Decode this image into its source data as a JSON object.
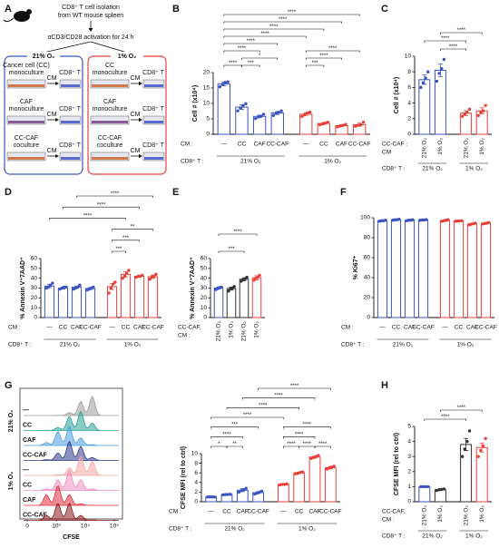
{
  "diagram": {
    "panel": "A",
    "isolation": [
      "CD8⁺ T cell isolation",
      "from WT mouse spleen"
    ],
    "activation": "αCD3/CD28 activation for 24 h",
    "conditions": [
      {
        "label": "21% O₂",
        "rows": [
          {
            "source": [
              "Cancer cell (CC)",
              "monoculture"
            ],
            "arrow": "CM",
            "target": "CD8⁺ T"
          },
          {
            "source": [
              "CAF",
              "monoculture"
            ],
            "arrow": "CM",
            "target": "CD8⁺ T"
          },
          {
            "source": [
              "CC-CAF",
              "coculture"
            ],
            "arrow": "CM",
            "target": "CD8⁺ T"
          }
        ]
      },
      {
        "label": "1% O₂",
        "rows": [
          {
            "source": [
              "CC",
              "monoculture"
            ],
            "arrow": "CM",
            "target": "CD8⁺ T"
          },
          {
            "source": [
              "CAF",
              "monoculture"
            ],
            "arrow": "CM",
            "target": "CD8⁺ T"
          },
          {
            "source": [
              "CC-CAF",
              "coculture"
            ],
            "arrow": "CM",
            "target": "CD8⁺ T"
          }
        ]
      }
    ]
  },
  "histogram": {
    "panel": "G",
    "labels": [
      "—",
      "CC",
      "CAF",
      "CC-CAF",
      "—",
      "CC",
      "CAF",
      "CC-CAF"
    ],
    "colors": [
      "#9a9a9a",
      "#2aa198",
      "#4a9fe0",
      "#303a8a",
      "#f4a6a0",
      "#f08cc0",
      "#e0303a",
      "#8a1a1a"
    ],
    "groups": [
      "21% O₂",
      "1% O₂"
    ],
    "xticks": [
      "0",
      "10³",
      "10⁴",
      "10⁵"
    ],
    "xlabel": "CFSE"
  },
  "chart_data": [
    {
      "type": "bar",
      "panel": "B",
      "ylabel": "Cell # (x10⁴)",
      "ylim": [
        0,
        20
      ],
      "yticks": [
        0,
        5,
        10,
        15,
        20
      ],
      "cm_label": [
        "CM :"
      ],
      "group_title": "CD8⁺ T :",
      "groups": [
        {
          "label": "21% O₂",
          "categories": [
            "—",
            "CC",
            "CAF",
            "CC-CAF"
          ],
          "colors": [
            "#3b54c4",
            "#3b54c4",
            "#3b54c4",
            "#3b54c4"
          ],
          "values": [
            16.3,
            8.8,
            5.8,
            6.9
          ],
          "errors": [
            0.6,
            0.7,
            0.4,
            0.5
          ],
          "points": [
            [
              15.4,
              16.2,
              16.8,
              17.0
            ],
            [
              7.6,
              8.5,
              9.3,
              9.9
            ],
            [
              5.1,
              5.6,
              5.9,
              6.5
            ],
            [
              6.1,
              6.8,
              7.1,
              7.6
            ]
          ]
        },
        {
          "label": "1% O₂",
          "categories": [
            "—",
            "CC",
            "CAF",
            "CC-CAF"
          ],
          "colors": [
            "#e8413a",
            "#e8413a",
            "#e8413a",
            "#e8413a"
          ],
          "values": [
            6.5,
            3.5,
            2.8,
            3.1
          ],
          "errors": [
            0.4,
            0.3,
            0.3,
            0.5
          ],
          "points": [
            [
              5.8,
              6.3,
              6.9,
              7.2
            ],
            [
              3.1,
              3.3,
              3.6,
              3.9
            ],
            [
              2.4,
              2.7,
              2.9,
              3.2
            ],
            [
              2.6,
              2.9,
              3.1,
              3.9
            ]
          ]
        }
      ],
      "brackets": [
        {
          "bars": [
            0,
            1
          ],
          "label": "****"
        },
        {
          "bars": [
            1,
            2
          ],
          "label": "***"
        },
        {
          "bars": [
            4,
            5
          ],
          "label": "***"
        },
        {
          "bars": [
            1,
            3
          ],
          "label": "*"
        },
        {
          "bars": [
            4,
            6
          ],
          "label": "****"
        },
        {
          "bars": [
            0,
            2
          ],
          "label": "****"
        },
        {
          "bars": [
            4,
            7
          ],
          "label": "****"
        },
        {
          "bars": [
            0,
            3
          ],
          "label": "****"
        },
        {
          "bars": [
            0,
            4
          ],
          "label": "****"
        },
        {
          "bars": [
            0,
            5
          ],
          "label": "****"
        },
        {
          "bars": [
            0,
            6
          ],
          "label": "****"
        },
        {
          "bars": [
            0,
            7
          ],
          "label": "****"
        }
      ]
    },
    {
      "type": "bar",
      "panel": "C",
      "ylabel": "Cell # (x10⁴)",
      "ylim": [
        0,
        10
      ],
      "yticks": [
        0,
        2,
        4,
        6,
        8,
        10
      ],
      "cm_label": [
        "CC-CAF :",
        "CM"
      ],
      "group_title": "CD8⁺ T :",
      "rotate_categories": true,
      "groups": [
        {
          "label": "21% O₂",
          "categories": [
            "21% O₂",
            "1% O₂"
          ],
          "colors": [
            "#3b54c4",
            "#3b54c4"
          ],
          "values": [
            7.0,
            8.2
          ],
          "errors": [
            0.6,
            0.8
          ],
          "points": [
            [
              6.0,
              6.6,
              7.2,
              8.0
            ],
            [
              6.8,
              7.8,
              8.4,
              9.6
            ]
          ]
        },
        {
          "label": "1% O₂",
          "categories": [
            "21% O₂",
            "1% O₂"
          ],
          "colors": [
            "#e8413a",
            "#e8413a"
          ],
          "values": [
            2.7,
            3.0
          ],
          "errors": [
            0.3,
            0.4
          ],
          "points": [
            [
              2.3,
              2.6,
              2.8,
              3.2
            ],
            [
              2.4,
              2.8,
              3.0,
              3.7
            ]
          ]
        }
      ],
      "brackets": [
        {
          "bars": [
            1,
            2
          ],
          "label": "****"
        },
        {
          "bars": [
            0,
            2
          ],
          "label": "****"
        },
        {
          "bars": [
            1,
            3
          ],
          "label": "****"
        }
      ]
    },
    {
      "type": "bar",
      "panel": "D",
      "ylabel": "% Annexin V⁺7AAD⁺",
      "ylim": [
        0,
        60
      ],
      "yticks": [
        0,
        10,
        20,
        30,
        40,
        50,
        60
      ],
      "cm_label": [
        "CM :"
      ],
      "group_title": "CD8⁺ T :",
      "groups": [
        {
          "label": "21% O₂",
          "categories": [
            "—",
            "CC",
            "CAF",
            "CC-CAF"
          ],
          "colors": [
            "#3b54c4",
            "#3b54c4",
            "#3b54c4",
            "#3b54c4"
          ],
          "values": [
            32,
            30,
            31,
            29.5
          ],
          "errors": [
            1.5,
            1,
            1.2,
            1
          ],
          "points": [
            [
              30,
              31,
              33,
              35
            ],
            [
              29,
              30,
              31,
              31
            ],
            [
              29,
              30,
              31,
              33
            ],
            [
              28,
              29,
              30,
              31
            ]
          ]
        },
        {
          "label": "1% O₂",
          "categories": [
            "—",
            "CC",
            "CAF",
            "CC-CAF"
          ],
          "colors": [
            "#e8413a",
            "#e8413a",
            "#e8413a",
            "#e8413a"
          ],
          "values": [
            31.5,
            44,
            42,
            41.5
          ],
          "errors": [
            3,
            2.5,
            0.8,
            1.5
          ],
          "points": [
            [
              25,
              30,
              34,
              36
            ],
            [
              40,
              42,
              45,
              48
            ],
            [
              41,
              42,
              42,
              43
            ],
            [
              39,
              41,
              42,
              44
            ]
          ]
        }
      ],
      "brackets": [
        {
          "bars": [
            4,
            5
          ],
          "label": "***"
        },
        {
          "bars": [
            4,
            6
          ],
          "label": "***"
        },
        {
          "bars": [
            4,
            7
          ],
          "label": "**"
        },
        {
          "bars": [
            0,
            5
          ],
          "label": "****"
        },
        {
          "bars": [
            1,
            6
          ],
          "label": "****"
        },
        {
          "bars": [
            2,
            7
          ],
          "label": "****"
        }
      ]
    },
    {
      "type": "bar",
      "panel": "E",
      "ylabel": "% Annexin V⁺7AAD⁺",
      "ylim": [
        0,
        60
      ],
      "yticks": [
        0,
        10,
        20,
        30,
        40,
        50,
        60
      ],
      "cm_label": [
        "CC-CAF,",
        "CM :"
      ],
      "rotate_categories": true,
      "groups": [
        {
          "categories": [
            "21% O₂",
            "1% O₂",
            "21% O₂",
            "1% O₂"
          ],
          "colors": [
            "#3b54c4",
            "#333333",
            "#333333",
            "#e8413a"
          ],
          "values": [
            30,
            29.5,
            39,
            40.5
          ],
          "errors": [
            1,
            1.5,
            1.5,
            2
          ],
          "points": [
            [
              28.5,
              29.5,
              30.5,
              31
            ],
            [
              27,
              29,
              30,
              31.5
            ],
            [
              37,
              38.5,
              39.5,
              41
            ],
            [
              38,
              40,
              41,
              43
            ]
          ]
        }
      ],
      "brackets": [
        {
          "bars": [
            0,
            2
          ],
          "label": "***"
        },
        {
          "bars": [
            0,
            3
          ],
          "label": "****"
        }
      ]
    },
    {
      "type": "bar",
      "panel": "F",
      "ylabel": "% Ki67⁺",
      "ylim": [
        0,
        100
      ],
      "yticks": [
        0,
        20,
        40,
        60,
        80,
        100
      ],
      "cm_label": [
        "CM :"
      ],
      "group_title": "CD8⁺ T :",
      "groups": [
        {
          "label": "21% O₂",
          "categories": [
            "—",
            "CC",
            "CAF",
            "CC-CAF"
          ],
          "colors": [
            "#3b54c4",
            "#3b54c4",
            "#3b54c4",
            "#3b54c4"
          ],
          "values": [
            97,
            98,
            97.5,
            97.8
          ],
          "errors": [
            0.3,
            0.3,
            0.4,
            0.3
          ],
          "points": [
            [
              96.5,
              97,
              97,
              97.5
            ],
            [
              97.5,
              98,
              98,
              98.5
            ],
            [
              97,
              97.5,
              97.5,
              98
            ],
            [
              97.5,
              97.8,
              97.8,
              98.1
            ]
          ]
        },
        {
          "label": "1% O₂",
          "categories": [
            "—",
            "CC",
            "CAF",
            "CC-CAF"
          ],
          "colors": [
            "#e8413a",
            "#e8413a",
            "#e8413a",
            "#e8413a"
          ],
          "values": [
            97.2,
            96.8,
            93.8,
            94.5
          ],
          "errors": [
            0.5,
            0.3,
            0.6,
            0.5
          ],
          "points": [
            [
              96.5,
              97,
              97.5,
              98
            ],
            [
              96.5,
              96.8,
              96.8,
              97
            ],
            [
              93,
              93.5,
              94,
              94.6
            ],
            [
              93.8,
              94.3,
              94.6,
              95.2
            ]
          ]
        }
      ],
      "brackets": []
    },
    {
      "type": "bar",
      "ylabel": "CFSE MFI (rel to ctrl)",
      "ylim": [
        0,
        10
      ],
      "yticks": [
        0,
        2,
        4,
        6,
        8,
        10
      ],
      "cm_label": [
        "CM :"
      ],
      "group_title": "CD8⁺ T :",
      "groups": [
        {
          "label": "21% O₂",
          "categories": [
            "—",
            "CC",
            "CAF",
            "CC-CAF"
          ],
          "colors": [
            "#3b54c4",
            "#3b54c4",
            "#3b54c4",
            "#3b54c4"
          ],
          "values": [
            1.0,
            1.5,
            2.4,
            1.9
          ],
          "errors": [
            0.02,
            0.05,
            0.3,
            0.2
          ],
          "points": [
            [
              1,
              1,
              1,
              1
            ],
            [
              1.45,
              1.5,
              1.5,
              1.55
            ],
            [
              2.0,
              2.3,
              2.5,
              2.8
            ],
            [
              1.6,
              1.8,
              2.0,
              2.2
            ]
          ]
        },
        {
          "label": "1% O₂",
          "categories": [
            "—",
            "CC",
            "CAF",
            "CC-CAF"
          ],
          "colors": [
            "#e8413a",
            "#e8413a",
            "#e8413a",
            "#e8413a"
          ],
          "values": [
            3.6,
            6.0,
            9.3,
            7.1
          ],
          "errors": [
            0.1,
            0.15,
            0.2,
            0.25
          ],
          "points": [
            [
              3.5,
              3.6,
              3.6,
              3.7
            ],
            [
              5.8,
              5.9,
              6.1,
              6.2
            ],
            [
              9.0,
              9.2,
              9.4,
              9.6
            ],
            [
              6.8,
              7.0,
              7.2,
              7.4
            ]
          ]
        }
      ],
      "brackets": [
        {
          "bars": [
            0,
            1
          ],
          "label": "*"
        },
        {
          "bars": [
            1,
            2
          ],
          "label": "**"
        },
        {
          "bars": [
            4,
            5
          ],
          "label": "****"
        },
        {
          "bars": [
            5,
            6
          ],
          "label": "****"
        },
        {
          "bars": [
            6,
            7
          ],
          "label": "****"
        },
        {
          "bars": [
            0,
            2
          ],
          "label": "****"
        },
        {
          "bars": [
            4,
            6
          ],
          "label": "****"
        },
        {
          "bars": [
            0,
            3
          ],
          "label": "***"
        },
        {
          "bars": [
            4,
            7
          ],
          "label": "****"
        },
        {
          "bars": [
            0,
            4
          ],
          "label": "****"
        },
        {
          "bars": [
            1,
            5
          ],
          "label": "****"
        },
        {
          "bars": [
            2,
            6
          ],
          "label": "****"
        },
        {
          "bars": [
            3,
            7
          ],
          "label": "****"
        }
      ]
    },
    {
      "type": "bar",
      "panel": "H",
      "ylabel": "CFSE MFI (rel to ctrl)",
      "ylim": [
        0,
        5
      ],
      "yticks": [
        0,
        1,
        2,
        3,
        4,
        5
      ],
      "cm_label": [
        "CC-CAF,",
        "CM :"
      ],
      "group_title": "CD8⁺ T :",
      "rotate_categories": true,
      "groups": [
        {
          "label": "21% O₂",
          "categories": [
            "21% O₂",
            "1% O₂"
          ],
          "colors": [
            "#3b54c4",
            "#333333"
          ],
          "values": [
            1.0,
            0.8
          ],
          "errors": [
            0.02,
            0.05
          ],
          "points": [
            [
              1,
              1,
              1,
              1
            ],
            [
              0.75,
              0.8,
              0.82,
              0.85
            ]
          ]
        },
        {
          "label": "1% O₂",
          "categories": [
            "21% O₂",
            "1% O₂"
          ],
          "colors": [
            "#333333",
            "#e8413a"
          ],
          "values": [
            3.8,
            3.6
          ],
          "errors": [
            0.4,
            0.3
          ],
          "points": [
            [
              3.0,
              3.5,
              4.0,
              4.7
            ],
            [
              3.0,
              3.4,
              3.7,
              4.2
            ]
          ]
        }
      ],
      "brackets": [
        {
          "bars": [
            0,
            2
          ],
          "label": "****"
        },
        {
          "bars": [
            1,
            3
          ],
          "label": "****"
        }
      ]
    }
  ]
}
